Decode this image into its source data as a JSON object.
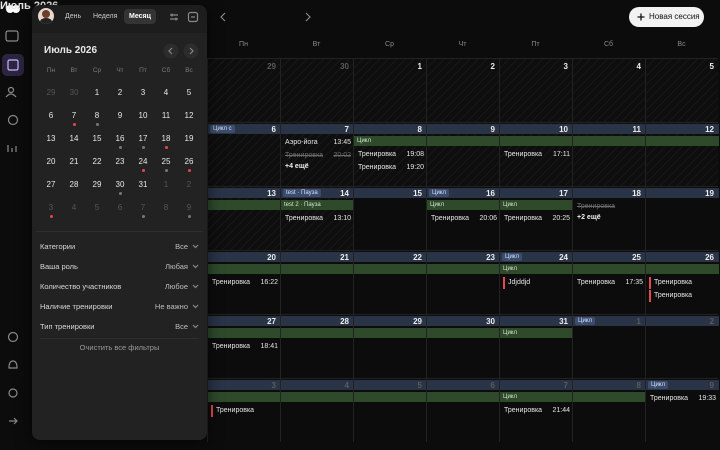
{
  "header": {
    "title": "Июль 2026",
    "new_session": "Новая сессия"
  },
  "weekdays": [
    "Пн",
    "Вт",
    "Ср",
    "Чт",
    "Пт",
    "Сб",
    "Вс"
  ],
  "weeks": [
    {
      "days": [
        {
          "date": 29,
          "muted": true
        },
        {
          "date": 30,
          "muted": true
        },
        {
          "date": 1
        },
        {
          "date": 2
        },
        {
          "date": 3
        },
        {
          "date": 4
        },
        {
          "date": 5
        }
      ]
    },
    {
      "days": [
        {
          "date": 6,
          "tag": "Цикл с"
        },
        {
          "date": 7,
          "events": [
            {
              "title": "Аэро-йога",
              "time": "13:45"
            },
            {
              "title": "Тренировка",
              "time": "20:02",
              "style": "strike"
            }
          ],
          "more": "+4 ещё"
        },
        {
          "date": 8,
          "band_label": "Цикл",
          "events": [
            {
              "title": "Тренировка",
              "time": "19:08"
            },
            {
              "title": "Тренировка",
              "time": "19:20"
            }
          ]
        },
        {
          "date": 9,
          "band": true
        },
        {
          "date": 10,
          "band": true,
          "events": [
            {
              "title": "Тренировка",
              "time": "17:11"
            }
          ]
        },
        {
          "date": 11,
          "band": true
        },
        {
          "date": 12,
          "band": true
        }
      ]
    },
    {
      "days": [
        {
          "date": 13,
          "band": true
        },
        {
          "date": 14,
          "tag": "test · Пауза",
          "band_label": "test 2 · Пауза",
          "events": [
            {
              "title": "Тренировка",
              "time": "13:10"
            }
          ]
        },
        {
          "date": 15
        },
        {
          "date": 16,
          "tag": "Цикл",
          "band_label": "Цикл",
          "events": [
            {
              "title": "Тренировка",
              "time": "20:06"
            }
          ]
        },
        {
          "date": 17,
          "band_label": "Цикл",
          "events": [
            {
              "title": "Тренировка",
              "time": "20:25"
            }
          ]
        },
        {
          "date": 18,
          "events": [
            {
              "title": "Тренировка",
              "style": "strike"
            }
          ],
          "more": "+2 ещё"
        },
        {
          "date": 19
        }
      ]
    },
    {
      "days": [
        {
          "date": 20,
          "band": true,
          "events": [
            {
              "title": "Тренировка",
              "time": "16:22"
            }
          ]
        },
        {
          "date": 21,
          "band": true
        },
        {
          "date": 22,
          "band": true
        },
        {
          "date": 23,
          "band": true
        },
        {
          "date": 24,
          "tag": "Цикл",
          "band_label": "Цикл",
          "events": [
            {
              "title": "Jdjddjd",
              "style": "red"
            }
          ]
        },
        {
          "date": 25,
          "band": true,
          "events": [
            {
              "title": "Тренировка",
              "time": "17:35"
            }
          ]
        },
        {
          "date": 26,
          "band": true,
          "events": [
            {
              "title": "Тренировка",
              "style": "red"
            },
            {
              "title": "Тренировка",
              "style": "red"
            }
          ]
        }
      ]
    },
    {
      "days": [
        {
          "date": 27,
          "band": true,
          "events": [
            {
              "title": "Тренировка",
              "time": "18:41"
            }
          ]
        },
        {
          "date": 28,
          "band": true
        },
        {
          "date": 29,
          "band": true
        },
        {
          "date": 30,
          "band": true
        },
        {
          "date": 31,
          "band_label": "Цикл"
        },
        {
          "date": 1,
          "muted": true,
          "tag": "Цикл"
        },
        {
          "date": 2,
          "muted": true
        }
      ]
    },
    {
      "days": [
        {
          "date": 3,
          "muted": true,
          "band": true,
          "events": [
            {
              "title": "Тренировка",
              "style": "red"
            }
          ]
        },
        {
          "date": 4,
          "muted": true,
          "band": true
        },
        {
          "date": 5,
          "muted": true,
          "band": true
        },
        {
          "date": 6,
          "muted": true,
          "band": true
        },
        {
          "date": 7,
          "muted": true,
          "band_label": "Цикл",
          "events": [
            {
              "title": "Тренировка",
              "time": "21:44"
            }
          ]
        },
        {
          "date": 8,
          "muted": true,
          "band": true
        },
        {
          "date": 9,
          "muted": true,
          "tag": "Цикл",
          "events": [
            {
              "title": "Тренировка",
              "time": "19:33"
            }
          ]
        }
      ]
    }
  ],
  "panel": {
    "tabs": [
      "День",
      "Неделя",
      "Месяц"
    ],
    "active_tab": 2,
    "mini": {
      "title": "Июль 2026",
      "weekdays": [
        "Пн",
        "Вт",
        "Ср",
        "Чт",
        "Пт",
        "Сб",
        "Вс"
      ],
      "days": [
        {
          "d": 29,
          "muted": true
        },
        {
          "d": 30,
          "muted": true
        },
        {
          "d": 1
        },
        {
          "d": 2
        },
        {
          "d": 3
        },
        {
          "d": 4
        },
        {
          "d": 5
        },
        {
          "d": 6
        },
        {
          "d": 7,
          "dot": "#e5484d"
        },
        {
          "d": 8,
          "dot": "#777777"
        },
        {
          "d": 9
        },
        {
          "d": 10
        },
        {
          "d": 11
        },
        {
          "d": 12
        },
        {
          "d": 13
        },
        {
          "d": 14
        },
        {
          "d": 15
        },
        {
          "d": 16,
          "dot": "#777777"
        },
        {
          "d": 17,
          "dot": "#777777"
        },
        {
          "d": 18,
          "dot": "#e5484d"
        },
        {
          "d": 19
        },
        {
          "d": 20
        },
        {
          "d": 21
        },
        {
          "d": 22
        },
        {
          "d": 23
        },
        {
          "d": 24,
          "dot": "#e5484d"
        },
        {
          "d": 25,
          "dot": "#777777"
        },
        {
          "d": 26,
          "dot": "#e5484d"
        },
        {
          "d": 27
        },
        {
          "d": 28
        },
        {
          "d": 29
        },
        {
          "d": 30,
          "dot": "#777777"
        },
        {
          "d": 31
        },
        {
          "d": 1,
          "muted": true
        },
        {
          "d": 2,
          "muted": true
        },
        {
          "d": 3,
          "muted": true,
          "dot": "#e5484d"
        },
        {
          "d": 4,
          "muted": true
        },
        {
          "d": 5,
          "muted": true
        },
        {
          "d": 6,
          "muted": true
        },
        {
          "d": 7,
          "muted": true,
          "dot": "#777777"
        },
        {
          "d": 8,
          "muted": true
        },
        {
          "d": 9,
          "muted": true,
          "dot": "#777777"
        }
      ]
    },
    "filters": [
      {
        "label": "Категории",
        "value": "Все"
      },
      {
        "label": "Ваша роль",
        "value": "Любая"
      },
      {
        "label": "Количество участников",
        "value": "Любое"
      },
      {
        "label": "Наличие тренировки",
        "value": "Не важно"
      },
      {
        "label": "Тип тренировки",
        "value": "Все"
      }
    ],
    "clear": "Очистить все фильтры"
  }
}
